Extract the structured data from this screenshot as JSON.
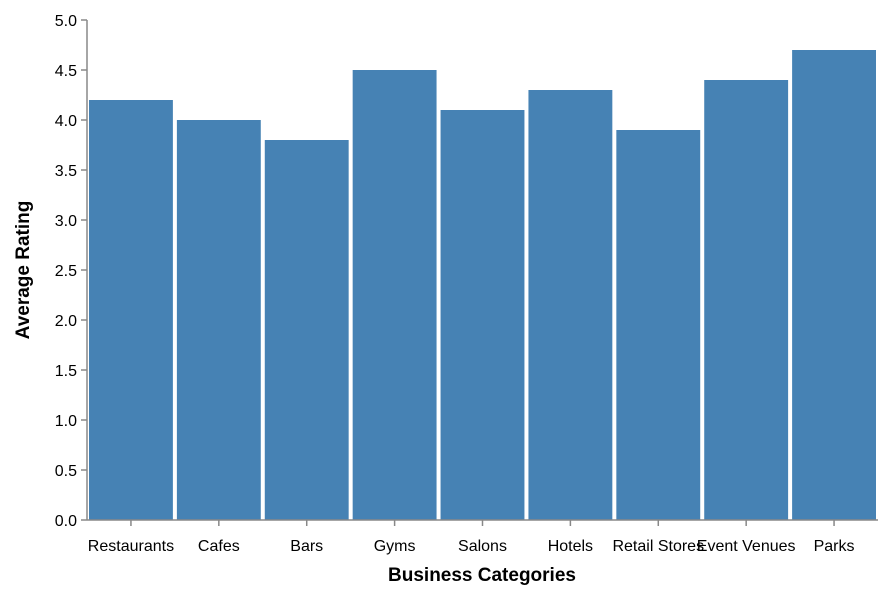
{
  "chart_data": {
    "type": "bar",
    "title": "",
    "xlabel": "Business Categories",
    "ylabel": "Average Rating",
    "categories": [
      "Restaurants",
      "Cafes",
      "Bars",
      "Gyms",
      "Salons",
      "Hotels",
      "Retail Stores",
      "Event Venues",
      "Parks"
    ],
    "values": [
      4.2,
      4.0,
      3.8,
      4.5,
      4.1,
      4.3,
      3.9,
      4.4,
      4.7
    ],
    "ylim": [
      0,
      5
    ],
    "yticks": [
      "0.0",
      "0.5",
      "1.0",
      "1.5",
      "2.0",
      "2.5",
      "3.0",
      "3.5",
      "4.0",
      "4.5",
      "5.0"
    ],
    "grid": false,
    "legend": "none",
    "bar_color": "#4682b4",
    "axis_color": "#888888"
  }
}
